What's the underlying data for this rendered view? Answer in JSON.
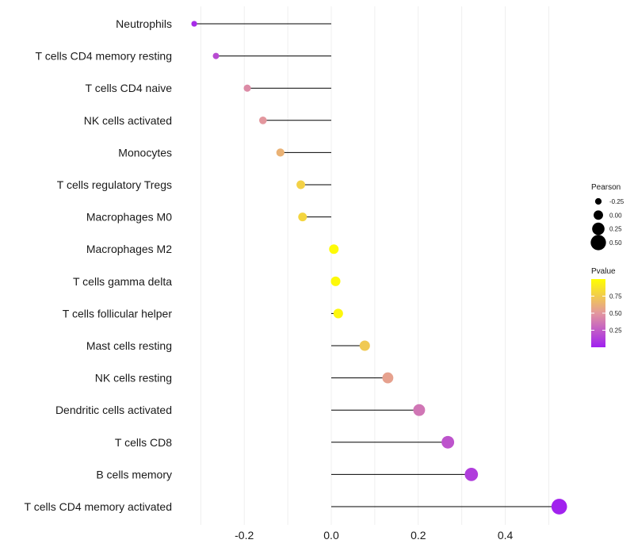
{
  "chart_data": {
    "type": "lollipop",
    "title": "",
    "xlabel": "",
    "ylabel": "",
    "xlim": [
      -0.3,
      0.55
    ],
    "x_ticks": [
      -0.2,
      0.0,
      0.2,
      0.4
    ],
    "x_tick_labels": [
      "-0.2",
      "0.0",
      "0.2",
      "0.4"
    ],
    "grid": "vertical",
    "categories": [
      "Neutrophils",
      "T cells CD4 memory resting",
      "T cells CD4 naive",
      "NK cells activated",
      "Monocytes",
      "T cells regulatory  Tregs",
      "Macrophages M0",
      "Macrophages M2",
      "T cells gamma delta",
      "T cells follicular helper",
      "Mast cells resting",
      "NK cells resting",
      "Dendritic cells activated",
      "T cells CD8",
      "B cells memory",
      "T cells CD4 memory activated"
    ],
    "pearson": [
      -0.315,
      -0.265,
      -0.193,
      -0.157,
      -0.117,
      -0.07,
      -0.066,
      0.006,
      0.01,
      0.016,
      0.077,
      0.13,
      0.202,
      0.268,
      0.322,
      0.524
    ],
    "pvalue": [
      0.05,
      0.18,
      0.45,
      0.5,
      0.63,
      0.78,
      0.8,
      0.98,
      0.97,
      0.96,
      0.74,
      0.55,
      0.36,
      0.22,
      0.12,
      0.01
    ],
    "size_legend": {
      "title": "Pearson",
      "labels": [
        "-0.25",
        "0.00",
        "0.25",
        "0.50"
      ],
      "values": [
        -0.25,
        0.0,
        0.25,
        0.5
      ]
    },
    "color_legend": {
      "title": "Pvalue",
      "labels": [
        "0.75",
        "0.50",
        "0.25"
      ],
      "values": [
        0.75,
        0.5,
        0.25
      ],
      "low_color": "#A020F0",
      "mid_color": "#E3979E",
      "high_color": "#FFFF00"
    },
    "stem_color": "#000000",
    "grid_color": "#EBEBEB"
  }
}
